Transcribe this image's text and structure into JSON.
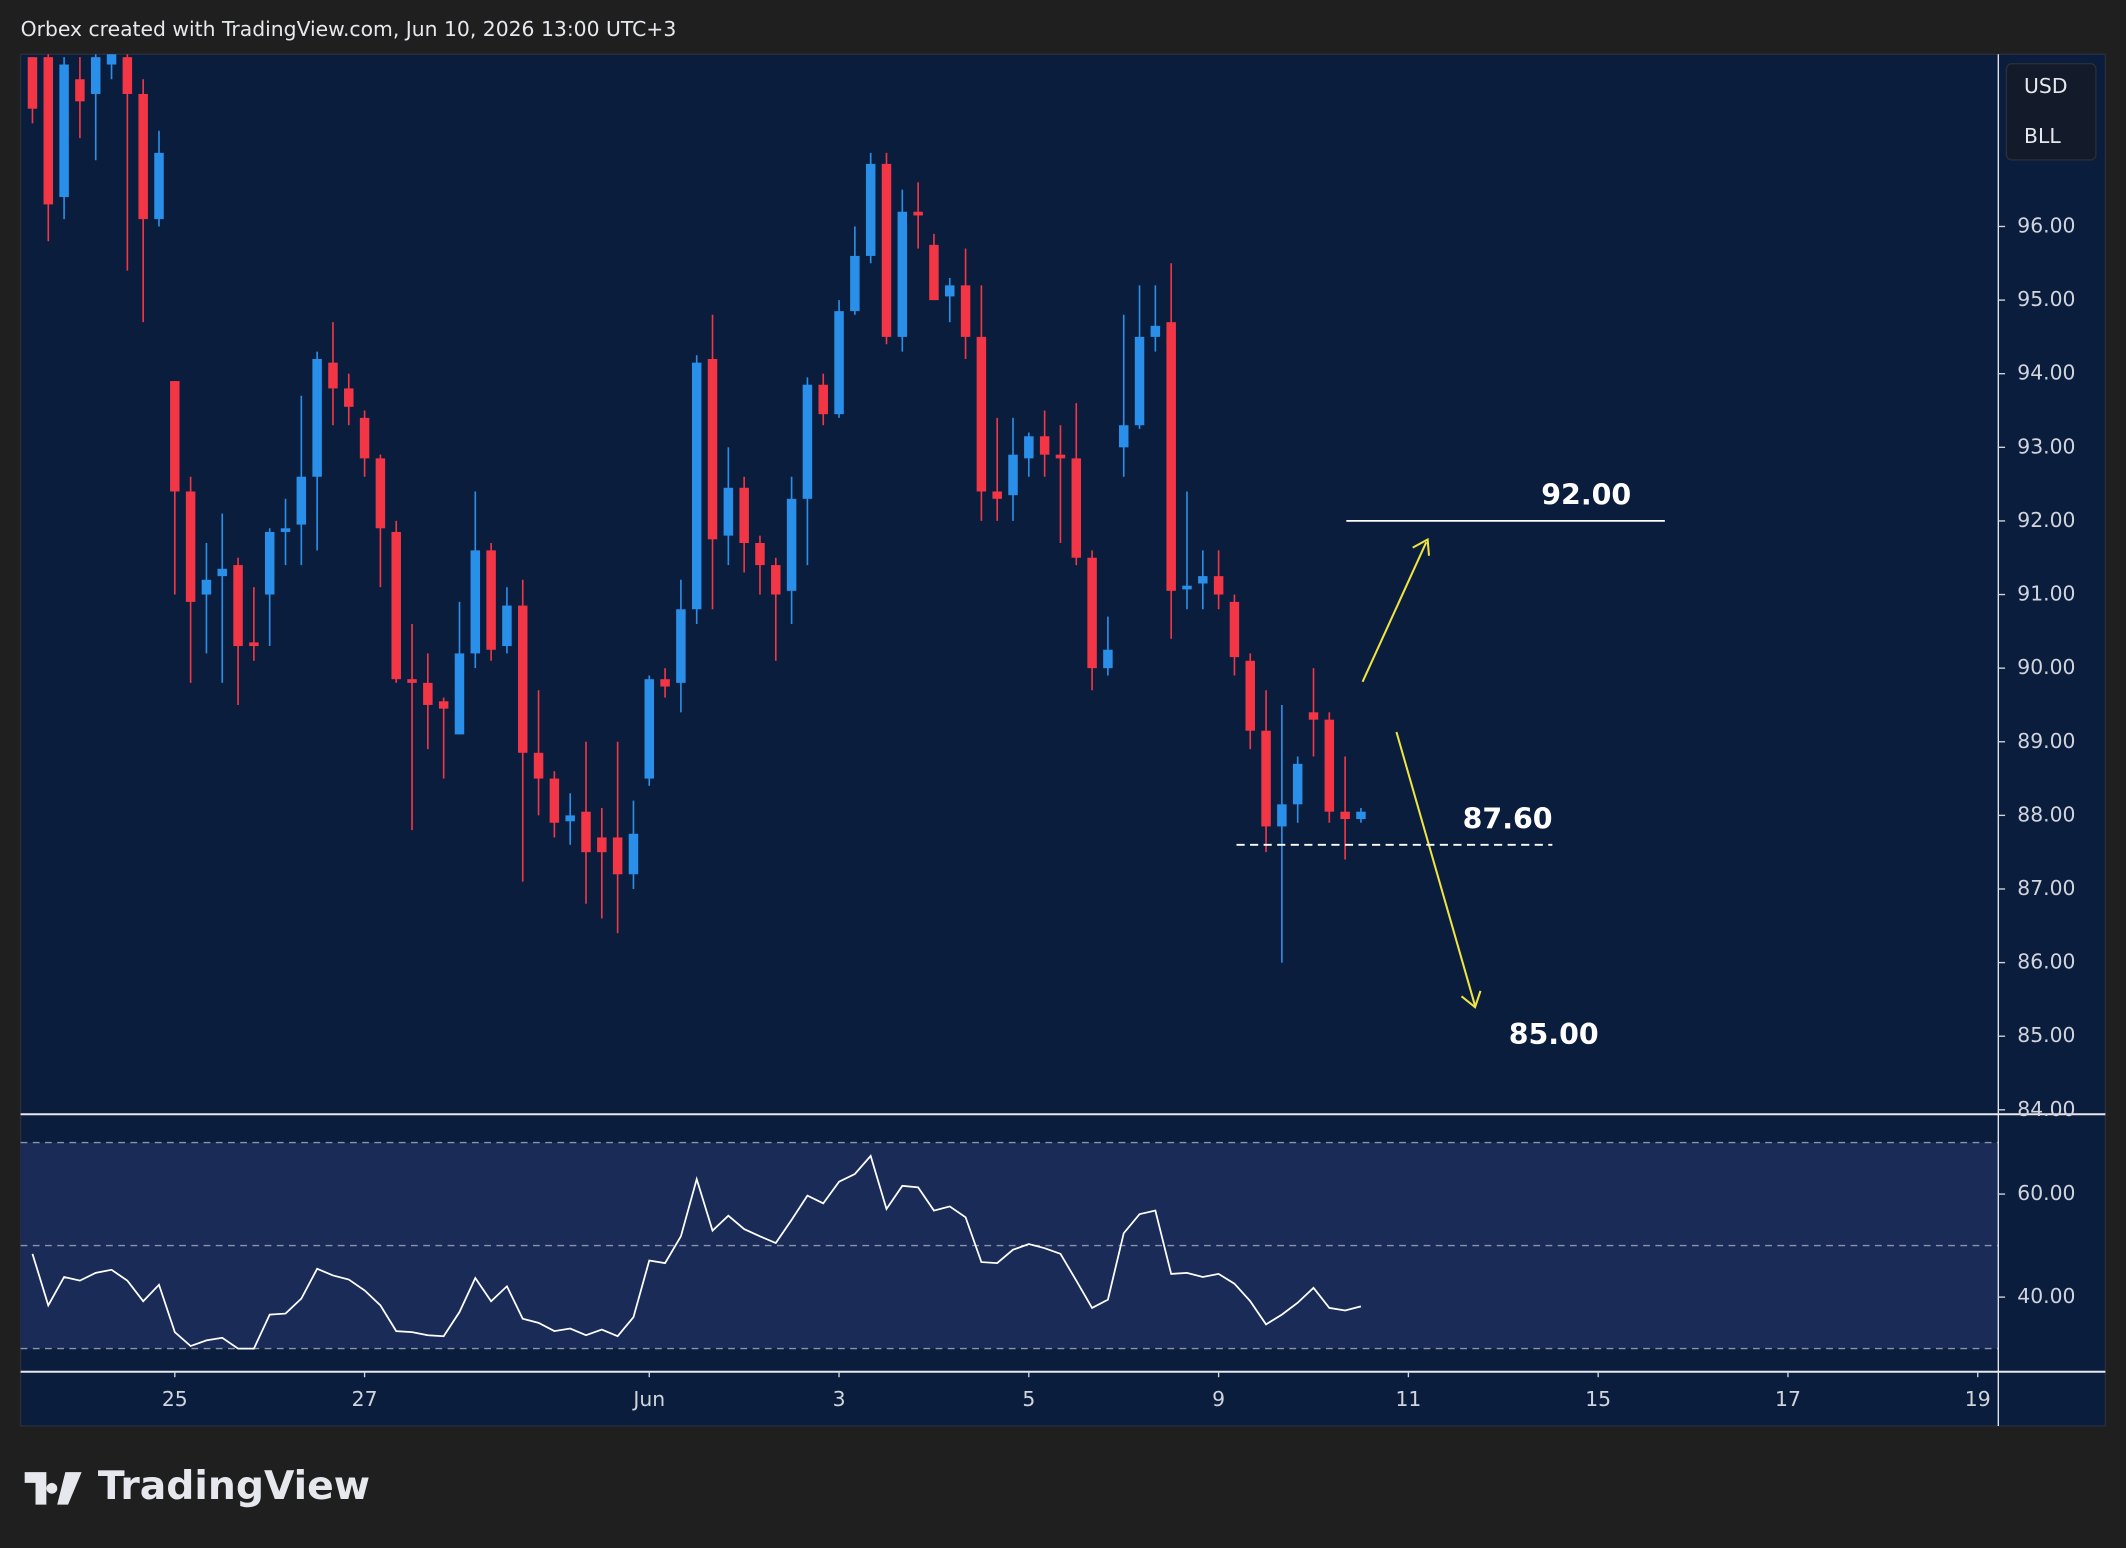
{
  "header": "Orbex created with TradingView.com, Jun 10, 2026 13:00 UTC+3",
  "scale_box": [
    "USD",
    "BLL"
  ],
  "footer": "TradingView",
  "chart_data": {
    "type": "candlestick",
    "x": [
      1,
      2,
      3,
      4,
      5,
      6,
      7,
      8,
      9,
      10,
      11,
      12,
      13,
      14,
      15,
      16,
      17,
      18,
      19,
      20,
      21,
      22,
      23,
      24,
      25,
      26,
      27,
      28,
      29,
      30,
      31,
      32,
      33,
      34,
      35,
      36,
      37,
      38,
      39,
      40,
      41,
      42,
      43,
      44,
      45,
      46,
      47,
      48,
      49,
      50,
      51,
      52,
      53,
      54,
      55,
      56,
      57,
      58,
      59,
      60,
      61,
      62,
      63,
      64,
      65,
      66,
      67,
      68,
      69,
      70,
      71,
      72,
      73,
      74,
      75,
      76,
      77,
      78,
      79,
      80,
      81,
      82,
      83,
      84,
      85
    ],
    "open": [
      98.3,
      98.3,
      96.4,
      98.0,
      97.8,
      98.2,
      98.3,
      97.8,
      96.1,
      93.9,
      92.4,
      91.0,
      91.25,
      91.4,
      90.35,
      91.0,
      91.85,
      91.95,
      92.6,
      94.15,
      93.8,
      93.4,
      92.85,
      91.85,
      89.85,
      89.8,
      89.55,
      89.1,
      90.2,
      91.6,
      90.3,
      90.85,
      88.85,
      88.5,
      87.92,
      88.05,
      87.7,
      87.7,
      87.2,
      88.5,
      89.85,
      89.8,
      90.8,
      94.2,
      91.8,
      92.45,
      91.7,
      91.4,
      91.05,
      92.3,
      93.85,
      93.45,
      94.85,
      95.6,
      96.85,
      94.5,
      96.2,
      95.75,
      95.05,
      95.2,
      94.5,
      92.4,
      92.35,
      92.85,
      93.15,
      92.9,
      92.85,
      91.5,
      90.0,
      93.0,
      93.3,
      94.5,
      94.7,
      91.07,
      91.15,
      91.25,
      90.9,
      90.1,
      89.15,
      87.85,
      88.15,
      89.4,
      89.3,
      88.05,
      87.95
    ],
    "high": [
      98.3,
      98.4,
      98.3,
      98.3,
      98.4,
      98.5,
      98.4,
      98.0,
      97.3,
      93.9,
      92.6,
      91.7,
      92.1,
      91.5,
      91.1,
      91.9,
      92.3,
      93.7,
      94.3,
      94.7,
      94.0,
      93.5,
      92.9,
      92.0,
      90.6,
      90.2,
      89.6,
      90.9,
      92.4,
      91.7,
      91.1,
      91.2,
      89.7,
      88.6,
      88.3,
      89.0,
      88.1,
      89.0,
      88.2,
      89.9,
      90.0,
      91.2,
      94.25,
      94.8,
      93.0,
      92.6,
      91.8,
      91.5,
      92.6,
      93.95,
      94.0,
      95.0,
      96.0,
      97.0,
      97.0,
      96.5,
      96.6,
      95.9,
      95.3,
      95.7,
      95.2,
      93.4,
      93.4,
      93.2,
      93.5,
      93.3,
      93.6,
      91.6,
      90.7,
      94.8,
      95.2,
      95.2,
      95.5,
      92.4,
      91.6,
      91.6,
      91.0,
      90.2,
      89.7,
      89.5,
      88.8,
      90.0,
      89.4,
      88.8,
      88.1
    ],
    "low": [
      97.4,
      95.8,
      96.1,
      97.2,
      96.9,
      98.0,
      95.4,
      94.7,
      96.0,
      91.0,
      89.8,
      90.2,
      89.8,
      89.5,
      90.1,
      90.3,
      91.4,
      91.4,
      91.6,
      93.3,
      93.3,
      92.6,
      91.1,
      89.8,
      87.8,
      88.9,
      88.5,
      89.1,
      90.0,
      90.1,
      90.2,
      87.1,
      88.0,
      87.7,
      87.6,
      86.8,
      86.6,
      86.4,
      87.0,
      88.4,
      89.6,
      89.4,
      90.6,
      90.8,
      91.4,
      91.3,
      91.0,
      90.1,
      90.6,
      91.4,
      93.3,
      93.4,
      94.8,
      95.5,
      94.4,
      94.3,
      95.7,
      95.0,
      94.7,
      94.2,
      92.0,
      92.0,
      92.0,
      92.6,
      92.6,
      91.7,
      91.4,
      89.7,
      89.9,
      92.6,
      93.25,
      94.3,
      90.4,
      90.8,
      90.8,
      90.8,
      89.9,
      88.9,
      87.5,
      86.0,
      87.9,
      88.8,
      87.9,
      87.4,
      87.9
    ],
    "close": [
      97.6,
      96.3,
      98.2,
      97.7,
      98.3,
      98.4,
      97.8,
      96.1,
      97.0,
      92.4,
      90.9,
      91.2,
      91.35,
      90.3,
      90.3,
      91.85,
      91.9,
      92.6,
      94.2,
      93.8,
      93.55,
      92.85,
      91.9,
      89.85,
      89.8,
      89.5,
      89.45,
      90.2,
      91.6,
      90.25,
      90.85,
      88.85,
      88.5,
      87.9,
      88.0,
      87.5,
      87.5,
      87.2,
      87.75,
      89.85,
      89.75,
      90.8,
      94.15,
      91.75,
      92.45,
      91.7,
      91.4,
      91.0,
      92.3,
      93.85,
      93.45,
      94.85,
      95.6,
      96.85,
      94.5,
      96.2,
      96.15,
      95.0,
      95.2,
      94.5,
      92.4,
      92.3,
      92.9,
      93.15,
      92.9,
      92.85,
      91.5,
      90.0,
      90.25,
      93.3,
      94.5,
      94.65,
      91.05,
      91.12,
      91.25,
      91.0,
      90.15,
      89.15,
      87.85,
      88.15,
      88.7,
      89.3,
      88.05,
      87.95,
      88.05
    ],
    "up_color": "#2a8fe8",
    "down_color": "#f23645",
    "xlim": [
      0.25,
      125.3
    ],
    "xticks": [
      {
        "value": 10,
        "label": "25"
      },
      {
        "value": 22,
        "label": "27"
      },
      {
        "value": 40,
        "label": "Jun"
      },
      {
        "value": 52,
        "label": "3"
      },
      {
        "value": 64,
        "label": "5"
      },
      {
        "value": 76,
        "label": "9"
      },
      {
        "value": 88,
        "label": "11"
      },
      {
        "value": 100,
        "label": "15"
      },
      {
        "value": 112,
        "label": "17"
      },
      {
        "value": 124,
        "label": "19"
      }
    ],
    "ylim": [
      83.94,
      98.34
    ],
    "yticks": [
      {
        "value": 84,
        "label": "84.00"
      },
      {
        "value": 85,
        "label": "85.00"
      },
      {
        "value": 86,
        "label": "86.00"
      },
      {
        "value": 87,
        "label": "87.00"
      },
      {
        "value": 88,
        "label": "88.00"
      },
      {
        "value": 89,
        "label": "89.00"
      },
      {
        "value": 90,
        "label": "90.00"
      },
      {
        "value": 91,
        "label": "91.00"
      },
      {
        "value": 92,
        "label": "92.00"
      },
      {
        "value": 93,
        "label": "93.00"
      },
      {
        "value": 94,
        "label": "94.00"
      },
      {
        "value": 95,
        "label": "95.00"
      },
      {
        "value": 96,
        "label": "96.00"
      }
    ],
    "annotations": [
      {
        "label": "92.00",
        "value": 92,
        "line": "solid"
      },
      {
        "label": "87.60",
        "value": 87.6,
        "line": "dashed"
      },
      {
        "label": "85.00",
        "value": 85
      }
    ],
    "rsi": {
      "type": "line",
      "color": "#ffffff",
      "values": [
        48.4,
        38.4,
        43.9,
        43.2,
        44.7,
        45.3,
        43.2,
        39.2,
        42.4,
        33.2,
        30.5,
        31.6,
        32.1,
        30.0,
        30.0,
        36.6,
        36.8,
        39.7,
        45.5,
        44.2,
        43.4,
        41.3,
        38.4,
        33.4,
        33.2,
        32.6,
        32.4,
        37.1,
        43.7,
        39.2,
        42.1,
        35.8,
        35.0,
        33.4,
        33.9,
        32.6,
        33.7,
        32.4,
        36.1,
        47.1,
        46.6,
        51.8,
        62.9,
        52.9,
        55.8,
        53.2,
        51.8,
        50.5,
        55.0,
        59.7,
        58.2,
        62.4,
        63.9,
        67.4,
        57.1,
        61.6,
        61.3,
        56.8,
        57.6,
        55.5,
        46.8,
        46.6,
        49.2,
        50.3,
        49.5,
        48.4,
        43.2,
        37.9,
        39.5,
        52.4,
        56.1,
        56.8,
        44.5,
        44.7,
        43.9,
        44.5,
        42.6,
        39.2,
        34.7,
        36.6,
        38.9,
        41.8,
        37.9,
        37.4,
        38.2
      ],
      "ylim": [
        25.5,
        75.5
      ],
      "yticks": [
        {
          "value": 40,
          "label": "40.00"
        },
        {
          "value": 60,
          "label": "60.00"
        }
      ],
      "levels": [
        30,
        50,
        70
      ]
    }
  }
}
